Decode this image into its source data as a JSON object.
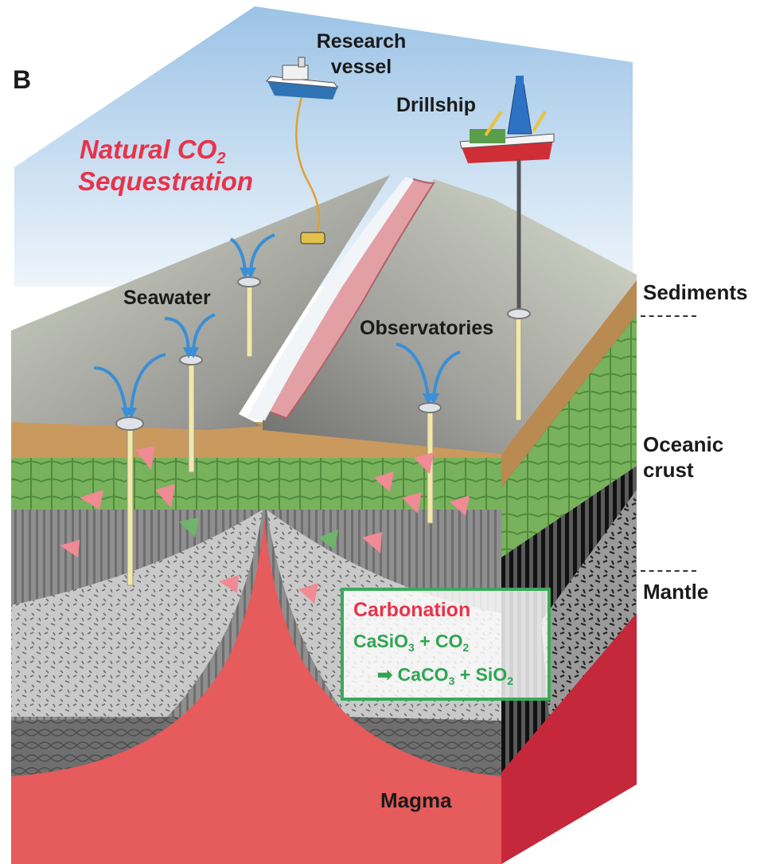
{
  "panel_letter": "B",
  "title": {
    "line1_prefix": "Natural CO",
    "line1_sub": "2",
    "line2": "Sequestration"
  },
  "labels": {
    "research_vessel_line1": "Research",
    "research_vessel_line2": "vessel",
    "drillship": "Drillship",
    "seawater": "Seawater",
    "observatories": "Observatories",
    "sediments": "Sediments",
    "oceanic_crust_line1": "Oceanic",
    "oceanic_crust_line2": "crust",
    "mantle": "Mantle",
    "magma": "Magma"
  },
  "carbonation": {
    "title": "Carbonation",
    "eq1": {
      "a": "CaSiO",
      "a_sub": "3",
      "b": " + CO",
      "b_sub": "2"
    },
    "eq2": {
      "arrow": "➡",
      "a": " CaCO",
      "a_sub": "3",
      "b": " + SiO",
      "b_sub": "2"
    }
  },
  "colors": {
    "title_red": "#e8334a",
    "carbonation_green": "#2fa551",
    "seawater_arrow_blue": "#3a8fd6",
    "magma_red": "#e65b5b",
    "sediment_tan": "#c9995e",
    "crust_green": "#6fae55",
    "sky_blue": "#a9cbe9"
  }
}
